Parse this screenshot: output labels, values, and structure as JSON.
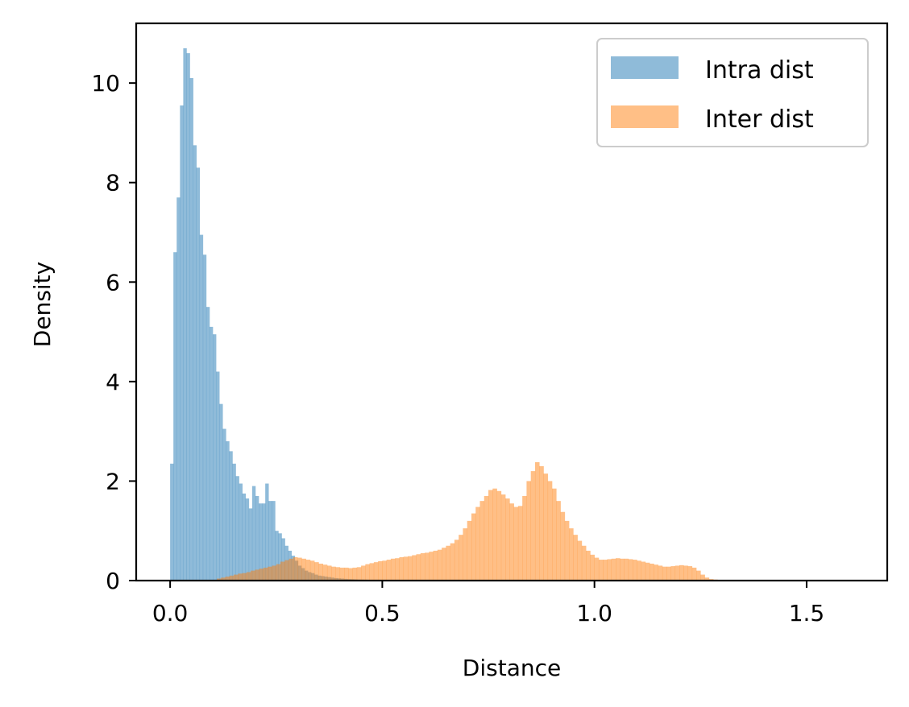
{
  "chart_data": {
    "type": "histogram",
    "xlabel": "Distance",
    "ylabel": "Density",
    "xlim": [
      -0.08,
      1.69
    ],
    "ylim": [
      0,
      11.2
    ],
    "xticks": [
      {
        "value": 0.0,
        "label": "0.0"
      },
      {
        "value": 0.5,
        "label": "0.5"
      },
      {
        "value": 1.0,
        "label": "1.0"
      },
      {
        "value": 1.5,
        "label": "1.5"
      }
    ],
    "yticks": [
      {
        "value": 0,
        "label": "0"
      },
      {
        "value": 2,
        "label": "2"
      },
      {
        "value": 4,
        "label": "4"
      },
      {
        "value": 6,
        "label": "6"
      },
      {
        "value": 8,
        "label": "8"
      },
      {
        "value": 10,
        "label": "10"
      }
    ],
    "legend_position": "top-right",
    "grid": false,
    "series": [
      {
        "name": "Intra dist",
        "color": "#1f77b4",
        "alpha": 0.5,
        "bin_start": 0.0,
        "bin_width": 0.00773,
        "values": [
          2.35,
          6.6,
          7.7,
          9.55,
          10.7,
          10.6,
          10.1,
          8.75,
          8.3,
          6.95,
          6.55,
          5.5,
          5.1,
          4.95,
          4.2,
          3.55,
          3.05,
          2.8,
          2.6,
          2.35,
          2.1,
          1.95,
          1.75,
          1.65,
          1.45,
          1.9,
          1.7,
          1.55,
          1.55,
          1.95,
          1.6,
          1.6,
          1.0,
          0.95,
          0.85,
          0.7,
          0.6,
          0.5,
          0.4,
          0.3,
          0.25,
          0.2,
          0.17,
          0.15,
          0.12,
          0.1,
          0.09,
          0.08,
          0.07,
          0.06,
          0.05,
          0.045,
          0.04,
          0.035,
          0.03,
          0.028,
          0.025,
          0.022,
          0.02,
          0.018,
          0.016,
          0.014,
          0.012,
          0.01,
          0.009,
          0.008,
          0.007,
          0.006,
          0.005,
          0.004
        ]
      },
      {
        "name": "Inter dist",
        "color": "#ff7f0e",
        "alpha": 0.5,
        "bin_start": 0.11,
        "bin_width": 0.01,
        "values": [
          0.04,
          0.06,
          0.08,
          0.1,
          0.12,
          0.14,
          0.15,
          0.17,
          0.2,
          0.22,
          0.24,
          0.26,
          0.28,
          0.3,
          0.33,
          0.38,
          0.41,
          0.44,
          0.47,
          0.46,
          0.44,
          0.42,
          0.4,
          0.37,
          0.34,
          0.32,
          0.3,
          0.28,
          0.27,
          0.26,
          0.26,
          0.25,
          0.26,
          0.27,
          0.3,
          0.33,
          0.35,
          0.37,
          0.39,
          0.4,
          0.42,
          0.44,
          0.45,
          0.47,
          0.48,
          0.49,
          0.51,
          0.53,
          0.55,
          0.56,
          0.58,
          0.6,
          0.62,
          0.66,
          0.7,
          0.75,
          0.82,
          0.92,
          1.05,
          1.2,
          1.35,
          1.48,
          1.6,
          1.7,
          1.82,
          1.85,
          1.8,
          1.73,
          1.65,
          1.55,
          1.48,
          1.5,
          1.7,
          2.0,
          2.2,
          2.38,
          2.3,
          2.15,
          2.0,
          1.85,
          1.6,
          1.38,
          1.2,
          1.05,
          0.92,
          0.8,
          0.7,
          0.6,
          0.52,
          0.46,
          0.42,
          0.42,
          0.43,
          0.44,
          0.45,
          0.44,
          0.44,
          0.43,
          0.42,
          0.4,
          0.38,
          0.36,
          0.34,
          0.32,
          0.3,
          0.28,
          0.28,
          0.29,
          0.3,
          0.31,
          0.3,
          0.29,
          0.26,
          0.2,
          0.12,
          0.06,
          0.03,
          0.02,
          0.01
        ]
      }
    ]
  }
}
